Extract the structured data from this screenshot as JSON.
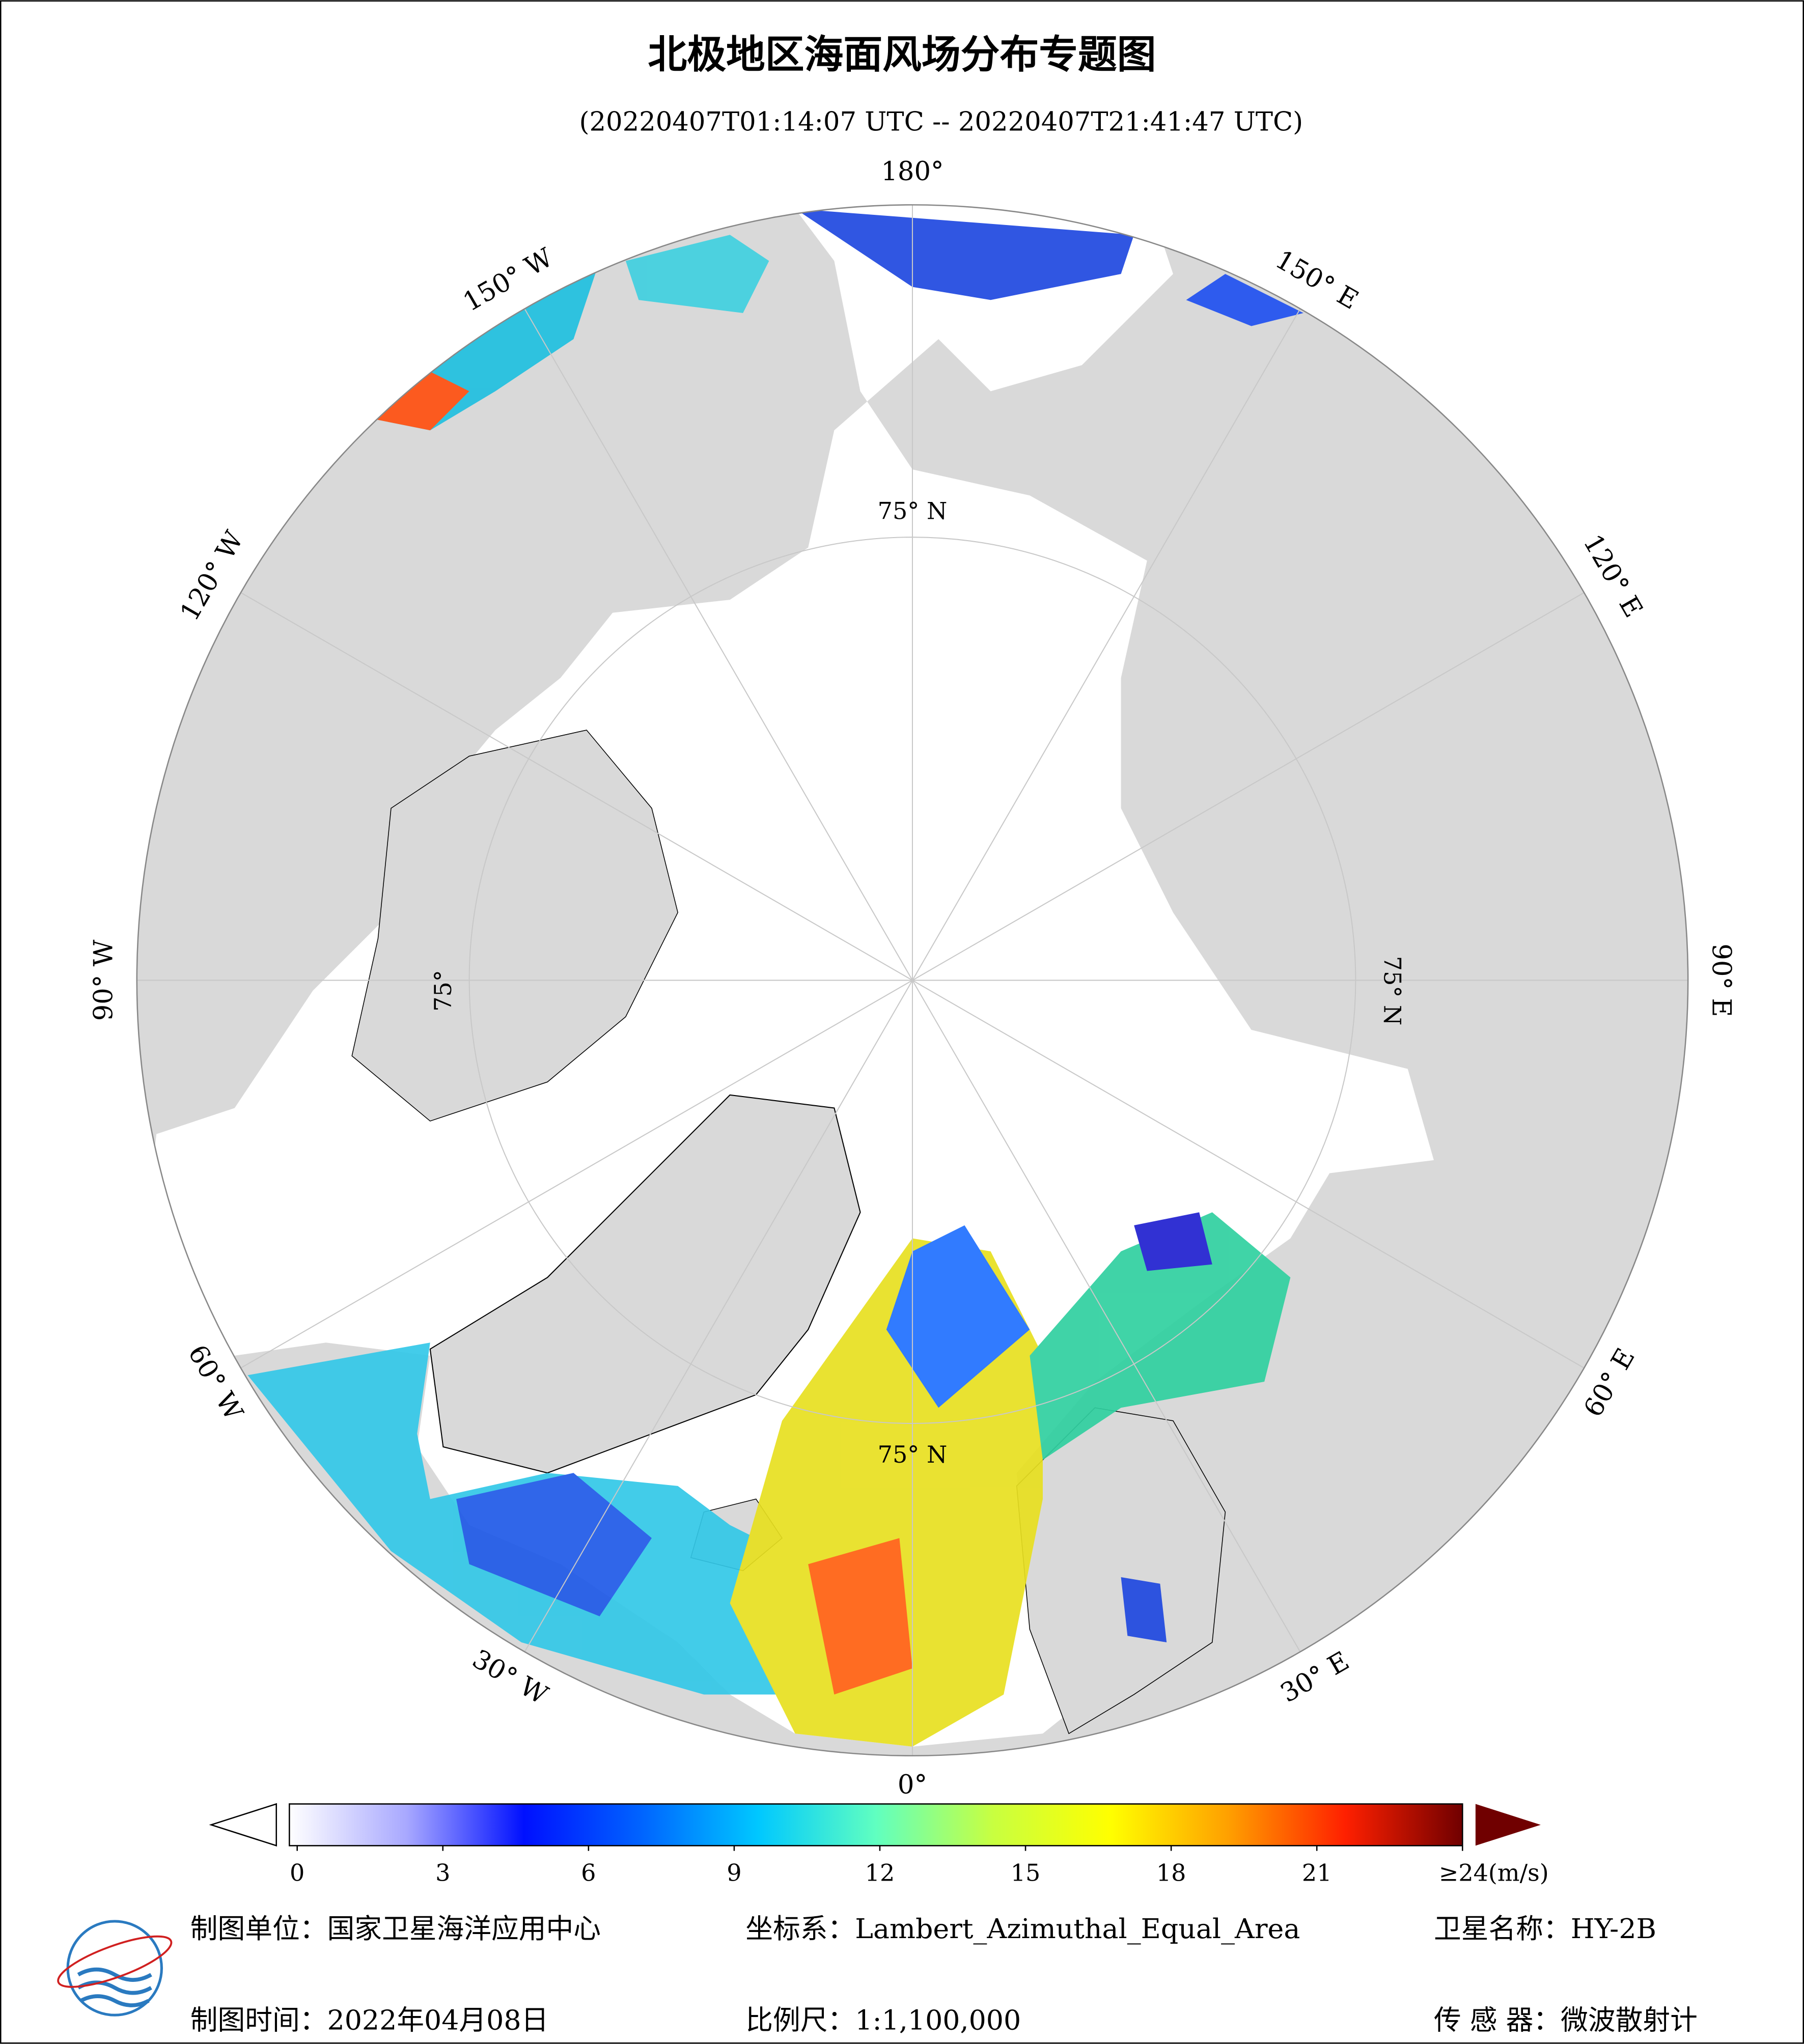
{
  "title": "北极地区海面风场分布专题图",
  "subtitle": "(20220407T01:14:07 UTC -- 20220407T21:41:47 UTC)",
  "longitude_labels": [
    "180°",
    "150° E",
    "120° E",
    "90° E",
    "60° E",
    "30° E",
    "0°",
    "30° W",
    "60° W",
    "90° W",
    "120° W",
    "150° W"
  ],
  "latitude_labels": [
    "75° N",
    "75° N",
    "75°",
    "75° N"
  ],
  "colorbar": {
    "colors": [
      "#ffffff",
      "#a8a8ff",
      "#0010ff",
      "#0064ff",
      "#00c8ff",
      "#60ffc0",
      "#c8ff40",
      "#ffff00",
      "#ffa000",
      "#ff2000",
      "#700000"
    ],
    "ticks": [
      0,
      3,
      6,
      9,
      12,
      15,
      18,
      21,
      {
        "value": 24,
        "label": "≥24(m/s)"
      }
    ]
  },
  "footer": {
    "unit": "制图单位：国家卫星海洋应用中心",
    "crs": "坐标系：Lambert_Azimuthal_Equal_Area",
    "satellite": "卫星名称：HY-2B",
    "date": "制图时间：2022年04月08日",
    "scale": "比例尺：1:1,100,000",
    "sensor": "传 感 器：微波散射计"
  }
}
